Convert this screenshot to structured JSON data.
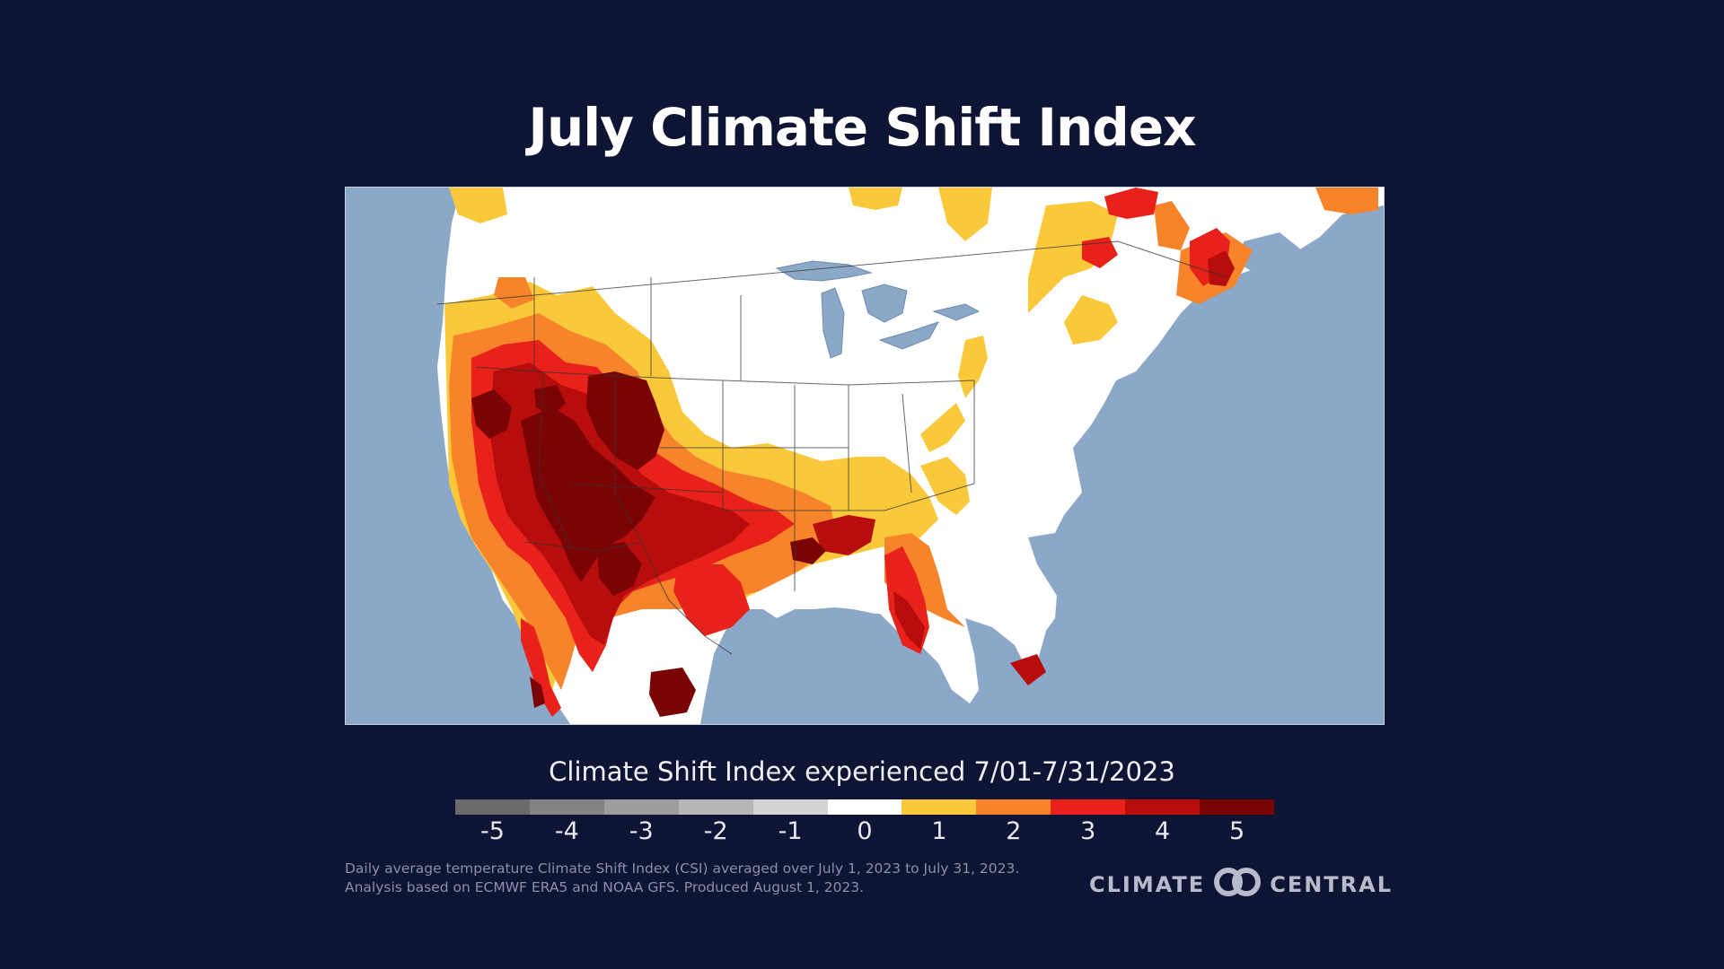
{
  "title": "July Climate Shift Index",
  "map": {
    "region": "Contiguous United States, northern Mexico, southern Canada",
    "colors": {
      "ocean": "#8ca8c8",
      "land_csi_0": "#ffffff",
      "csi_1": "#f9c93b",
      "csi_2": "#f7842a",
      "csi_3": "#e8221a",
      "csi_4": "#b70d0d",
      "csi_5": "#7a0404",
      "borders": "#333333"
    }
  },
  "legend": {
    "title": "Climate Shift Index experienced 7/01-7/31/2023",
    "items": [
      {
        "label": "-5",
        "color": "#6a6a6a"
      },
      {
        "label": "-4",
        "color": "#848484"
      },
      {
        "label": "-3",
        "color": "#9d9d9d"
      },
      {
        "label": "-2",
        "color": "#b6b6b6"
      },
      {
        "label": "-1",
        "color": "#d3d3d3"
      },
      {
        "label": "0",
        "color": "#ffffff"
      },
      {
        "label": "1",
        "color": "#f9c93b"
      },
      {
        "label": "2",
        "color": "#f7842a"
      },
      {
        "label": "3",
        "color": "#e8221a"
      },
      {
        "label": "4",
        "color": "#b70d0d"
      },
      {
        "label": "5",
        "color": "#7a0404"
      }
    ]
  },
  "footnote": {
    "line1": "Daily average temperature Climate Shift Index (CSI) averaged over July 1, 2023 to July 31, 2023.",
    "line2": "Analysis based on ECMWF ERA5 and NOAA GFS. Produced August 1, 2023."
  },
  "brand": {
    "left": "CLIMATE",
    "right": "CENTRAL",
    "logo_icon": "climate-central-logo-icon"
  }
}
